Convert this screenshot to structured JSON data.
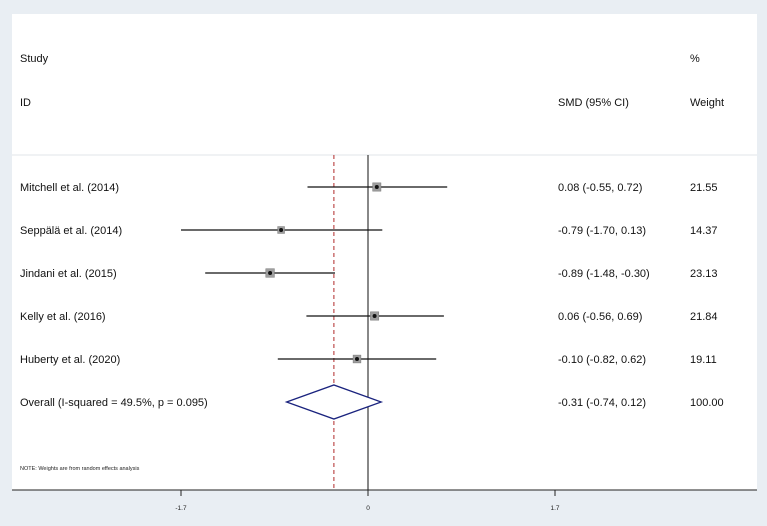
{
  "chart_data": {
    "type": "forest",
    "header": {
      "study_line1": "Study",
      "study_line2": "ID",
      "effect": "SMD (95% CI)",
      "weight_line1": "%",
      "weight_line2": "Weight"
    },
    "studies": [
      {
        "label": "Mitchell et al. (2014)",
        "est": 0.08,
        "lo": -0.55,
        "hi": 0.72,
        "ci_text": "0.08 (-0.55, 0.72)",
        "weight": "21.55"
      },
      {
        "label": "Seppälä et al. (2014)",
        "est": -0.79,
        "lo": -1.7,
        "hi": 0.13,
        "ci_text": "-0.79 (-1.70, 0.13)",
        "weight": "14.37"
      },
      {
        "label": "Jindani et al. (2015)",
        "est": -0.89,
        "lo": -1.48,
        "hi": -0.3,
        "ci_text": "-0.89 (-1.48, -0.30)",
        "weight": "23.13"
      },
      {
        "label": "Kelly et al. (2016)",
        "est": 0.06,
        "lo": -0.56,
        "hi": 0.69,
        "ci_text": "0.06 (-0.56, 0.69)",
        "weight": "21.84"
      },
      {
        "label": "Huberty et al. (2020)",
        "est": -0.1,
        "lo": -0.82,
        "hi": 0.62,
        "ci_text": "-0.10 (-0.82, 0.62)",
        "weight": "19.11"
      }
    ],
    "overall": {
      "label": "Overall  (I-squared = 49.5%, p = 0.095)",
      "est": -0.31,
      "lo": -0.74,
      "hi": 0.12,
      "ci_text": "-0.31 (-0.74, 0.12)",
      "weight": "100.00"
    },
    "note": "NOTE: Weights are from random effects analysis",
    "x_ticks": [
      {
        "value": -1.7,
        "label": "-1.7"
      },
      {
        "value": 0,
        "label": "0"
      },
      {
        "value": 1.7,
        "label": "1.7"
      }
    ],
    "null_line": 0,
    "colors": {
      "overall_diamond": "#1a237e",
      "pooled_line": "#b02a2a",
      "plot_bg": "#ffffff",
      "outer_bg": "#e9eef3"
    }
  }
}
